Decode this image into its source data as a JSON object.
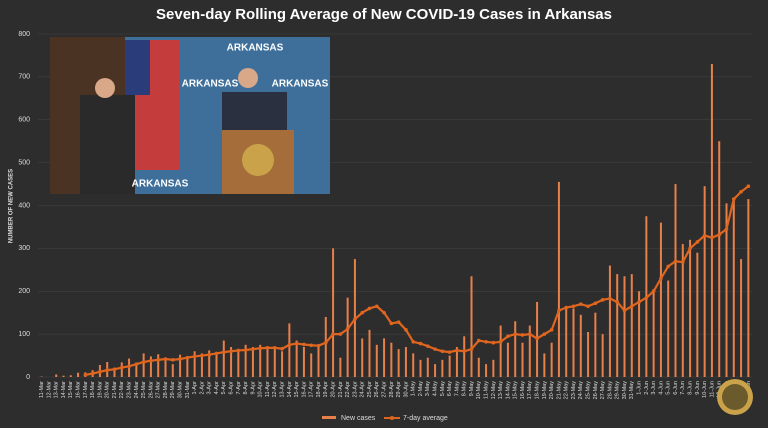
{
  "chart_data": {
    "type": "bar-line",
    "title": "Seven-day Rolling Average of New COVID-19 Cases in Arkansas",
    "y_label": "NUMBER OF NEW CASES",
    "categories": [
      "11-Mar",
      "12-Mar",
      "13-Mar",
      "14-Mar",
      "15-Mar",
      "16-Mar",
      "17-Mar",
      "18-Mar",
      "19-Mar",
      "20-Mar",
      "21-Mar",
      "22-Mar",
      "23-Mar",
      "24-Mar",
      "25-Mar",
      "26-Mar",
      "27-Mar",
      "28-Mar",
      "29-Mar",
      "30-Mar",
      "31-Mar",
      "1-Apr",
      "2-Apr",
      "3-Apr",
      "4-Apr",
      "5-Apr",
      "6-Apr",
      "7-Apr",
      "8-Apr",
      "9-Apr",
      "10-Apr",
      "11-Apr",
      "12-Apr",
      "13-Apr",
      "14-Apr",
      "15-Apr",
      "16-Apr",
      "17-Apr",
      "18-Apr",
      "19-Apr",
      "20-Apr",
      "21-Apr",
      "22-Apr",
      "23-Apr",
      "24-Apr",
      "25-Apr",
      "26-Apr",
      "27-Apr",
      "28-Apr",
      "29-Apr",
      "30-Apr",
      "1-May",
      "2-May",
      "3-May",
      "4-May",
      "5-May",
      "6-May",
      "7-May",
      "8-May",
      "9-May",
      "10-May",
      "11-May",
      "12-May",
      "13-May",
      "14-May",
      "15-May",
      "16-May",
      "17-May",
      "18-May",
      "19-May",
      "20-May",
      "21-May",
      "22-May",
      "23-May",
      "24-May",
      "25-May",
      "26-May",
      "27-May",
      "28-May",
      "29-May",
      "30-May",
      "31-May",
      "1-Jun",
      "2-Jun",
      "3-Jun",
      "4-Jun",
      "5-Jun",
      "6-Jun",
      "7-Jun",
      "8-Jun",
      "9-Jun",
      "10-Jun",
      "11-Jun",
      "12-Jun",
      "13-Jun",
      "14-Jun",
      "15-Jun",
      "16-Jun"
    ],
    "series": [
      {
        "name": "New cases",
        "color": "#e8804a",
        "kind": "bar",
        "values": [
          1,
          0,
          6,
          3,
          4,
          10,
          11,
          16,
          28,
          35,
          22,
          34,
          43,
          26,
          55,
          48,
          53,
          40,
          30,
          52,
          44,
          60,
          55,
          62,
          55,
          85,
          70,
          60,
          75,
          70,
          75,
          70,
          65,
          60,
          125,
          85,
          70,
          55,
          70,
          140,
          300,
          45,
          185,
          275,
          90,
          110,
          75,
          90,
          80,
          65,
          70,
          55,
          40,
          45,
          30,
          40,
          50,
          70,
          95,
          235,
          45,
          30,
          40,
          120,
          80,
          130,
          80,
          120,
          175,
          55,
          80,
          455,
          160,
          160,
          145,
          105,
          150,
          100,
          260,
          240,
          235,
          240,
          200,
          375,
          205,
          360,
          225,
          450,
          310,
          320,
          290,
          445,
          730,
          550,
          405,
          415,
          275,
          415
        ]
      },
      {
        "name": "7-day average",
        "color": "#e0661f",
        "kind": "line",
        "values": [
          null,
          null,
          null,
          null,
          null,
          null,
          5,
          8,
          12,
          16,
          18,
          22,
          25,
          30,
          35,
          38,
          40,
          42,
          40,
          42,
          45,
          48,
          50,
          52,
          55,
          58,
          60,
          62,
          63,
          65,
          67,
          68,
          68,
          66,
          75,
          78,
          76,
          74,
          73,
          80,
          100,
          100,
          112,
          135,
          150,
          160,
          165,
          150,
          125,
          128,
          110,
          82,
          78,
          72,
          65,
          60,
          58,
          62,
          60,
          65,
          85,
          82,
          80,
          82,
          95,
          100,
          98,
          100,
          90,
          100,
          110,
          155,
          162,
          165,
          170,
          165,
          172,
          180,
          183,
          175,
          155,
          165,
          175,
          185,
          200,
          230,
          258,
          270,
          268,
          300,
          315,
          330,
          325,
          332,
          345,
          415,
          432,
          445
        ]
      }
    ],
    "ylim": [
      0,
      800
    ],
    "yticks": [
      0,
      100,
      200,
      300,
      400,
      500,
      600,
      700,
      800
    ],
    "grid": true
  }
}
